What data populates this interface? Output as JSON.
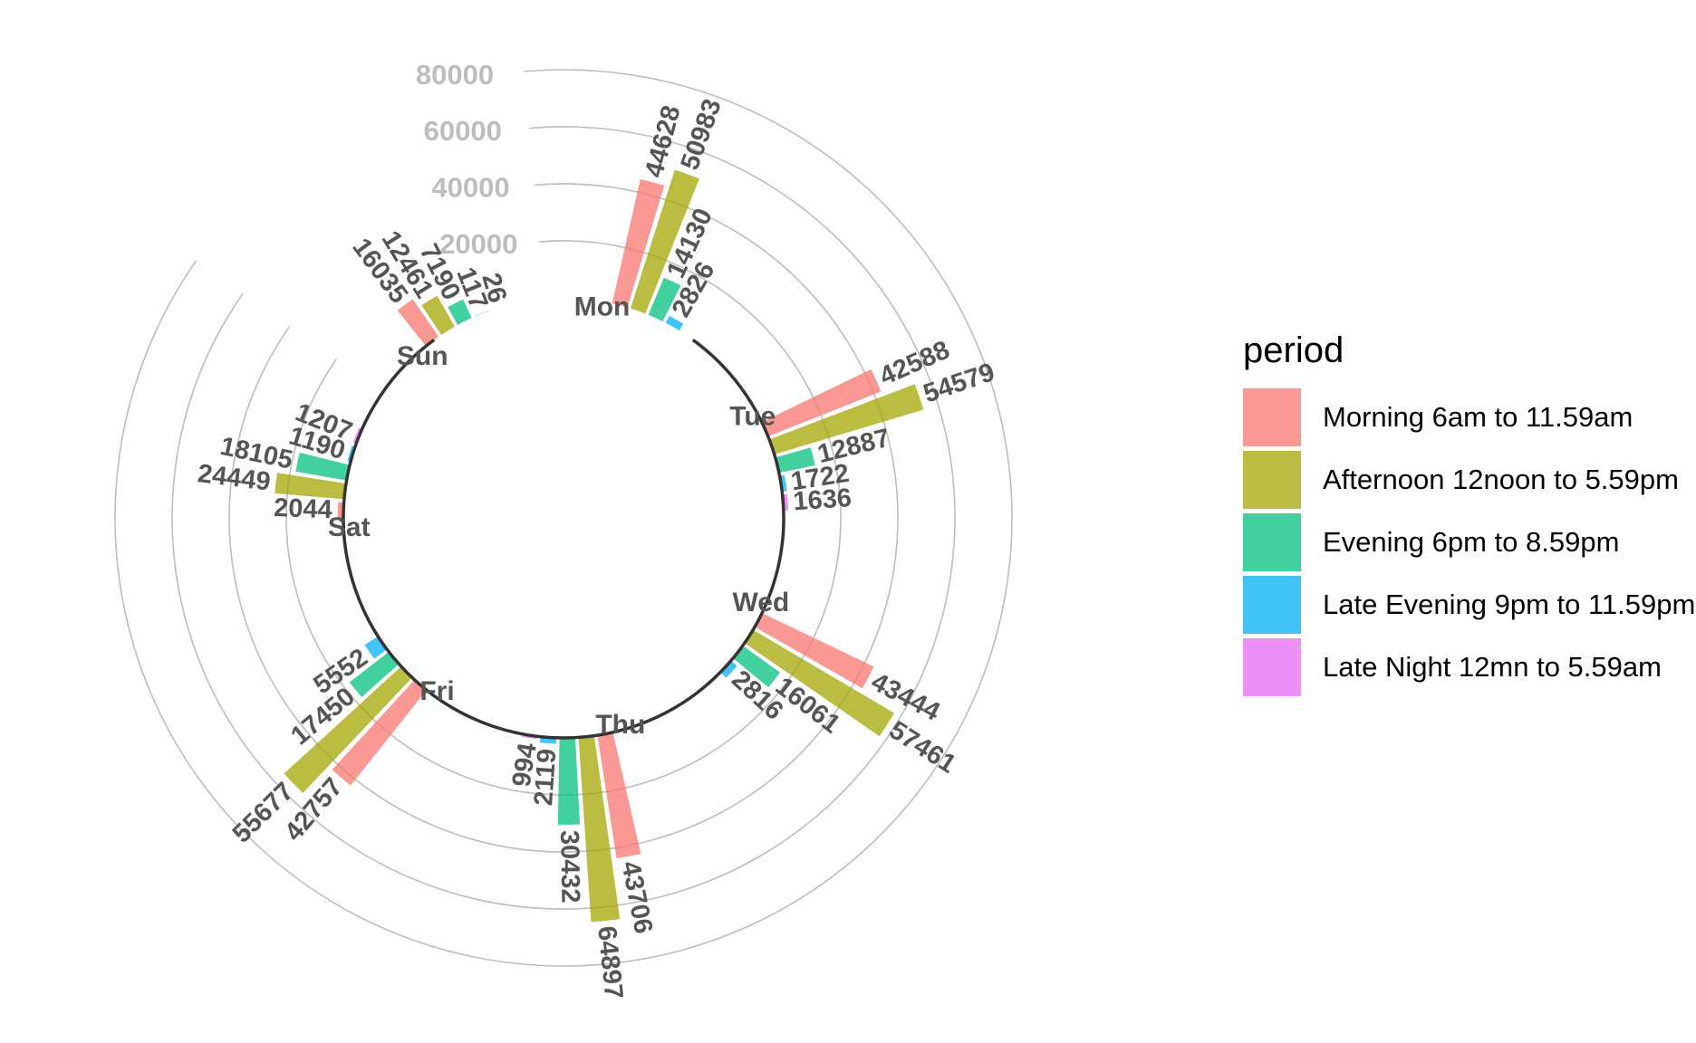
{
  "chart_data": {
    "type": "bar",
    "coord": "polar",
    "categories": [
      "Mon",
      "Tue",
      "Wed",
      "Thu",
      "Fri",
      "Sat",
      "Sun"
    ],
    "series": [
      {
        "name": "Morning 6am to 11.59am",
        "color": "#F8766D",
        "values": [
          44628,
          42588,
          43444,
          43706,
          42757,
          2044,
          16035
        ]
      },
      {
        "name": "Afternoon 12noon to 5.59pm",
        "color": "#A3A500",
        "values": [
          50983,
          54579,
          57461,
          64897,
          55677,
          24449,
          12461
        ]
      },
      {
        "name": "Evening 6pm to 8.59pm",
        "color": "#00BF7D",
        "values": [
          14130,
          12887,
          16061,
          30432,
          17450,
          18105,
          7190
        ]
      },
      {
        "name": "Late Evening 9pm to 11.59pm",
        "color": "#00B0F6",
        "values": [
          2826,
          1722,
          2816,
          2119,
          5552,
          1190,
          117
        ]
      },
      {
        "name": "Late Night 12mn to 5.59am",
        "color": "#E76BF3",
        "values": [
          null,
          1636,
          null,
          994,
          null,
          1207,
          26
        ]
      }
    ],
    "y_ticks": [
      20000,
      40000,
      60000,
      80000
    ],
    "ylim": [
      0,
      80000
    ],
    "legend_title": "period",
    "legend_position": "right"
  }
}
